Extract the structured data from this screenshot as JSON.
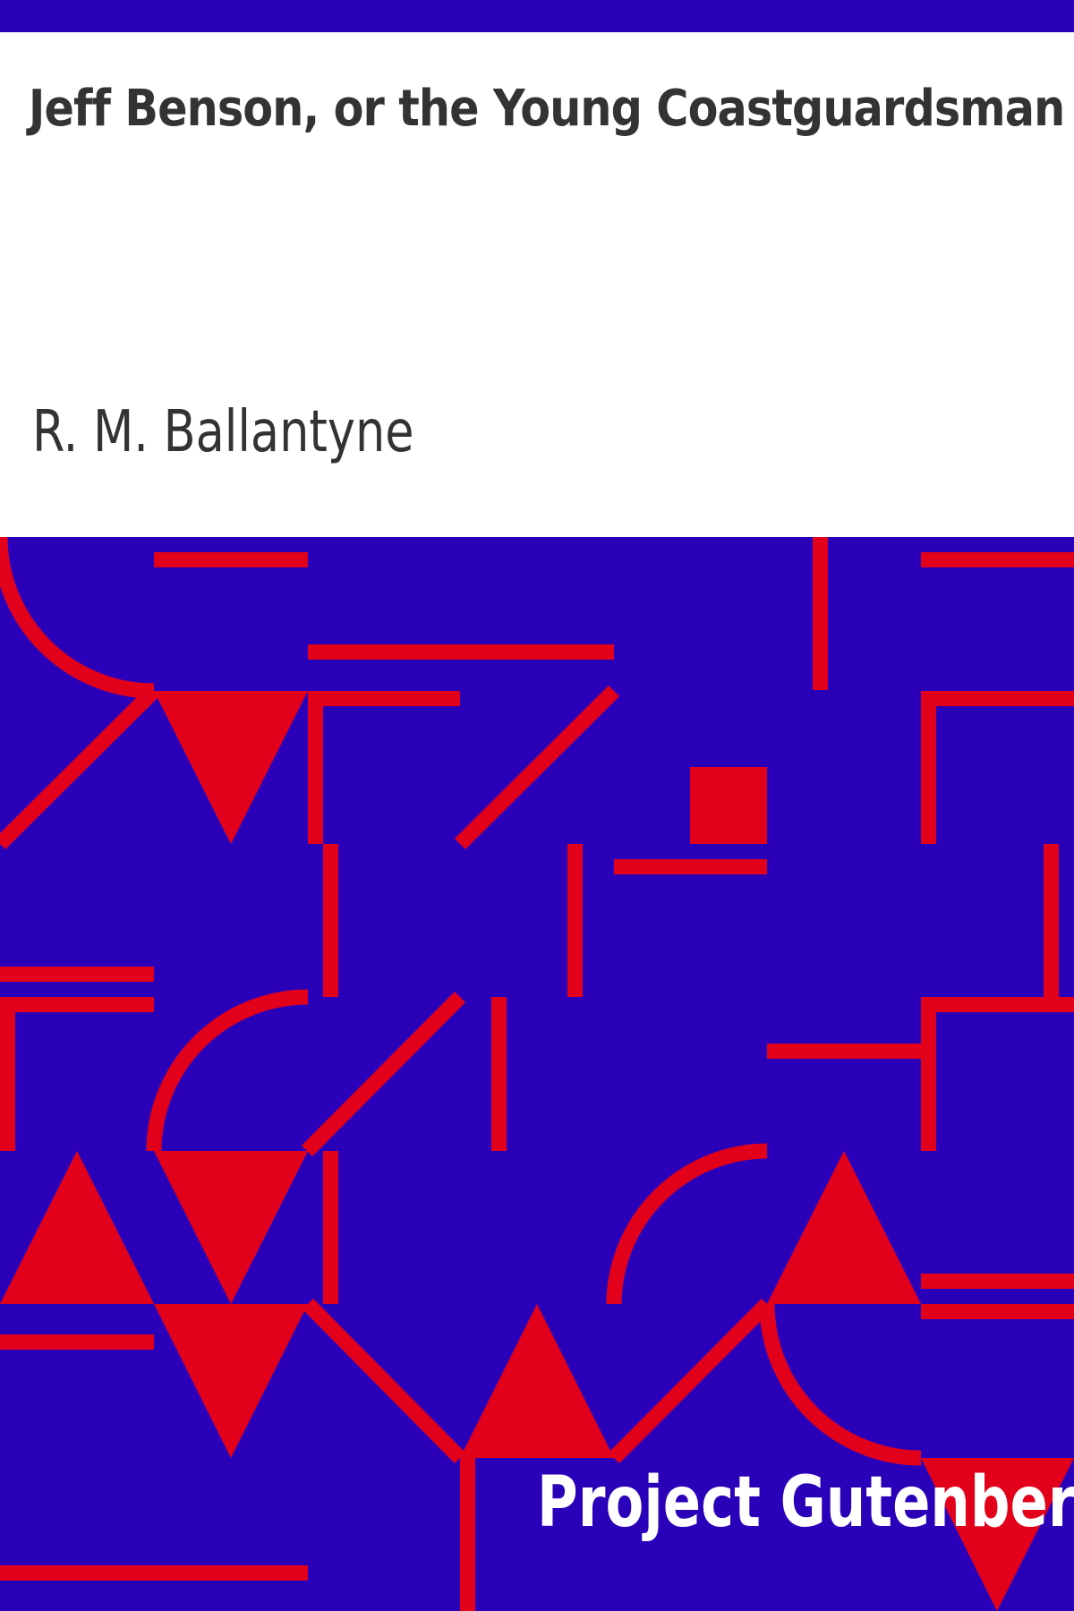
{
  "book": {
    "title": "Jeff Benson, or the Young Coastguardsman",
    "author": "R. M. Ballantyne",
    "publisher": "Project Gutenberg"
  },
  "colors": {
    "background": "#ffffff",
    "band": "#2a00b8",
    "pattern": "#e3001b",
    "title_text": "#333333",
    "publisher_text": "#ffffff"
  }
}
